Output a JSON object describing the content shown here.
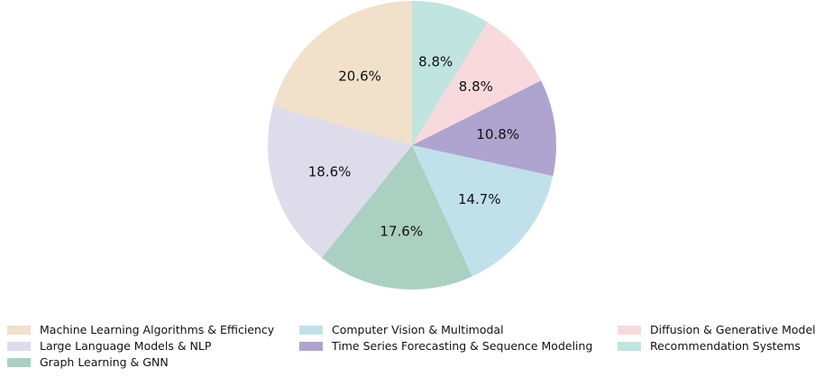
{
  "chart_data": {
    "type": "pie",
    "title": "",
    "start_angle_deg": 90,
    "direction": "clockwise",
    "legend_position": "bottom",
    "slices": [
      {
        "label": "Recommendation Systems",
        "value": 8.8,
        "pct_label": "8.8%",
        "color": "#c0e4df"
      },
      {
        "label": "Diffusion & Generative Model",
        "value": 8.8,
        "pct_label": "8.8%",
        "color": "#f8dadd"
      },
      {
        "label": "Time Series Forecasting & Sequence Modeling",
        "value": 10.8,
        "pct_label": "10.8%",
        "color": "#afa3cf"
      },
      {
        "label": "Computer Vision & Multimodal",
        "value": 14.7,
        "pct_label": "14.7%",
        "color": "#c1e1ea"
      },
      {
        "label": "Graph Learning & GNN",
        "value": 17.6,
        "pct_label": "17.6%",
        "color": "#aad0c2"
      },
      {
        "label": "Large Language Models & NLP",
        "value": 18.6,
        "pct_label": "18.6%",
        "color": "#dedbeb"
      },
      {
        "label": "Machine Learning Algorithms & Efficiency",
        "value": 20.6,
        "pct_label": "20.6%",
        "color": "#f1e0ca"
      }
    ]
  },
  "legend": {
    "items": [
      {
        "label": "Machine Learning Algorithms & Efficiency",
        "color": "#f1e0ca"
      },
      {
        "label": "Large Language Models & NLP",
        "color": "#dedbeb"
      },
      {
        "label": "Graph Learning & GNN",
        "color": "#aad0c2"
      },
      {
        "label": "Computer Vision & Multimodal",
        "color": "#c1e1ea"
      },
      {
        "label": "Time Series Forecasting & Sequence Modeling",
        "color": "#afa3cf"
      },
      {
        "label": "Diffusion & Generative Model",
        "color": "#f8dadd"
      },
      {
        "label": "Recommendation Systems",
        "color": "#c0e4df"
      }
    ]
  }
}
